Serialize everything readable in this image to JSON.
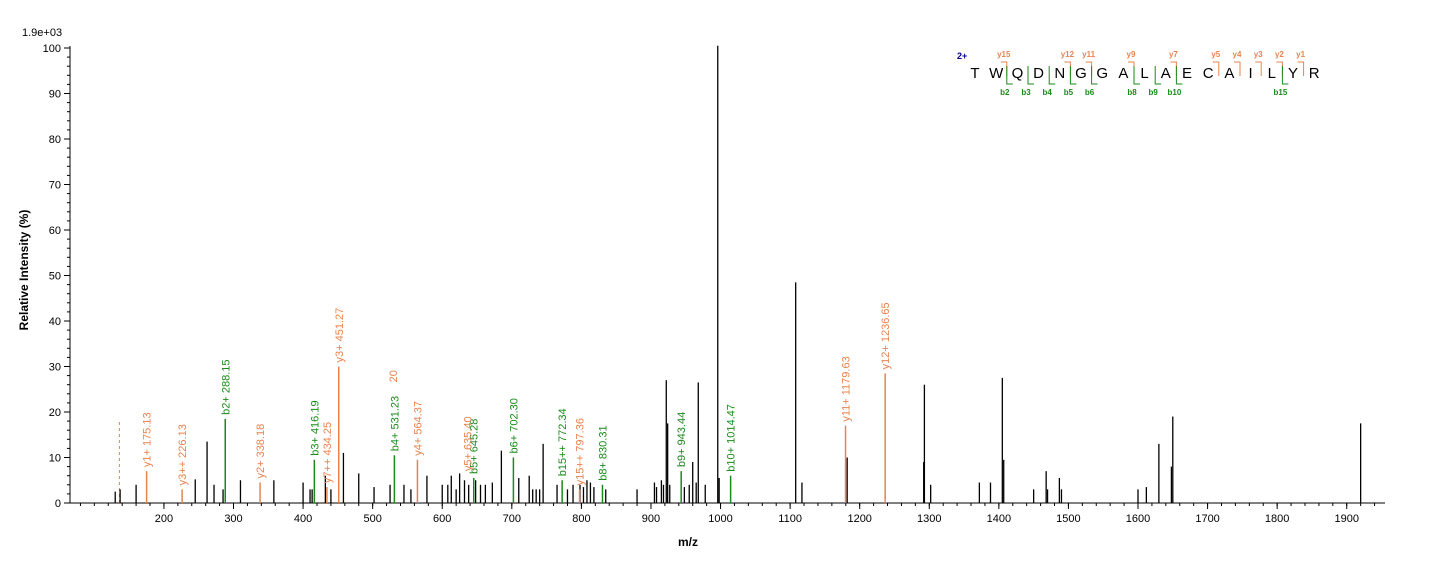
{
  "chart_data": {
    "type": "bar",
    "scale_label": "1.9e+03",
    "xlabel": "m/z",
    "ylabel": "Relative   Intensity (%)",
    "xlim": [
      65,
      1955
    ],
    "ylim": [
      0,
      100
    ],
    "xticks_major": [
      200,
      300,
      400,
      500,
      600,
      700,
      800,
      900,
      1000,
      1100,
      1200,
      1300,
      1400,
      1500,
      1600,
      1700,
      1800,
      1900
    ],
    "yticks": [
      0,
      10,
      20,
      30,
      40,
      50,
      60,
      70,
      80,
      90,
      100
    ],
    "grid": false,
    "colors": {
      "unassigned": "#000000",
      "y_ion": "#e8834e",
      "b_ion": "#1a8a1a",
      "charge": "#00008b"
    },
    "peaks": [
      {
        "mz": 130,
        "i": 2.5
      },
      {
        "mz": 137,
        "i": 3
      },
      {
        "mz": 160,
        "i": 4
      },
      {
        "mz": 245,
        "i": 5.2
      },
      {
        "mz": 262,
        "i": 13.5
      },
      {
        "mz": 272,
        "i": 4
      },
      {
        "mz": 285,
        "i": 3
      },
      {
        "mz": 310,
        "i": 5
      },
      {
        "mz": 358,
        "i": 5
      },
      {
        "mz": 400,
        "i": 4.5
      },
      {
        "mz": 410,
        "i": 3
      },
      {
        "mz": 413,
        "i": 3
      },
      {
        "mz": 432,
        "i": 6
      },
      {
        "mz": 440,
        "i": 3
      },
      {
        "mz": 458,
        "i": 11
      },
      {
        "mz": 480,
        "i": 6.5
      },
      {
        "mz": 502,
        "i": 3.5
      },
      {
        "mz": 525,
        "i": 4
      },
      {
        "mz": 545,
        "i": 4
      },
      {
        "mz": 555,
        "i": 3
      },
      {
        "mz": 578,
        "i": 6
      },
      {
        "mz": 600,
        "i": 4
      },
      {
        "mz": 608,
        "i": 4
      },
      {
        "mz": 613,
        "i": 6
      },
      {
        "mz": 620,
        "i": 3
      },
      {
        "mz": 625,
        "i": 6.5
      },
      {
        "mz": 632,
        "i": 5
      },
      {
        "mz": 638,
        "i": 4
      },
      {
        "mz": 648,
        "i": 5
      },
      {
        "mz": 655,
        "i": 4
      },
      {
        "mz": 662,
        "i": 4
      },
      {
        "mz": 672,
        "i": 4.5
      },
      {
        "mz": 685,
        "i": 11.5
      },
      {
        "mz": 710,
        "i": 5.5
      },
      {
        "mz": 725,
        "i": 6
      },
      {
        "mz": 730,
        "i": 3
      },
      {
        "mz": 735,
        "i": 3
      },
      {
        "mz": 740,
        "i": 3
      },
      {
        "mz": 745,
        "i": 13
      },
      {
        "mz": 765,
        "i": 4
      },
      {
        "mz": 780,
        "i": 3
      },
      {
        "mz": 788,
        "i": 4
      },
      {
        "mz": 798,
        "i": 4
      },
      {
        "mz": 803,
        "i": 3.5
      },
      {
        "mz": 808,
        "i": 5
      },
      {
        "mz": 813,
        "i": 4.5
      },
      {
        "mz": 818,
        "i": 3.5
      },
      {
        "mz": 835,
        "i": 3
      },
      {
        "mz": 880,
        "i": 3
      },
      {
        "mz": 905,
        "i": 4.5
      },
      {
        "mz": 908,
        "i": 3.5
      },
      {
        "mz": 915,
        "i": 5
      },
      {
        "mz": 918,
        "i": 4
      },
      {
        "mz": 922,
        "i": 27
      },
      {
        "mz": 924,
        "i": 17.5
      },
      {
        "mz": 927,
        "i": 4
      },
      {
        "mz": 948,
        "i": 3.5
      },
      {
        "mz": 955,
        "i": 4
      },
      {
        "mz": 960,
        "i": 9
      },
      {
        "mz": 965,
        "i": 4.5
      },
      {
        "mz": 968,
        "i": 26.5
      },
      {
        "mz": 978,
        "i": 4
      },
      {
        "mz": 996,
        "i": 100.5
      },
      {
        "mz": 998,
        "i": 5.5
      },
      {
        "mz": 1108,
        "i": 48.5
      },
      {
        "mz": 1117,
        "i": 4.5
      },
      {
        "mz": 1182,
        "i": 10
      },
      {
        "mz": 1292,
        "i": 9
      },
      {
        "mz": 1293,
        "i": 26
      },
      {
        "mz": 1302,
        "i": 4
      },
      {
        "mz": 1372,
        "i": 4.5
      },
      {
        "mz": 1388,
        "i": 4.5
      },
      {
        "mz": 1405,
        "i": 27.5
      },
      {
        "mz": 1407,
        "i": 9.5
      },
      {
        "mz": 1450,
        "i": 3
      },
      {
        "mz": 1468,
        "i": 7
      },
      {
        "mz": 1470,
        "i": 3
      },
      {
        "mz": 1487,
        "i": 5.5
      },
      {
        "mz": 1490,
        "i": 3
      },
      {
        "mz": 1600,
        "i": 3
      },
      {
        "mz": 1612,
        "i": 3.5
      },
      {
        "mz": 1630,
        "i": 13
      },
      {
        "mz": 1648,
        "i": 8
      },
      {
        "mz": 1650,
        "i": 19
      },
      {
        "mz": 1920,
        "i": 17.5
      }
    ],
    "annotations": [
      {
        "label": "y1+ 175.13",
        "mz": 175.13,
        "i": 7,
        "ion": "y"
      },
      {
        "label": "y3++ 226.13",
        "mz": 226.13,
        "i": 3,
        "ion": "y"
      },
      {
        "label": "b2+ 288.15",
        "mz": 288.15,
        "i": 18.5,
        "ion": "b"
      },
      {
        "label": "y2+ 338.18",
        "mz": 338.18,
        "i": 4.5,
        "ion": "y"
      },
      {
        "label": "b3+ 416.19",
        "mz": 416.19,
        "i": 9.5,
        "ion": "b"
      },
      {
        "label": "y7++ 434.25",
        "mz": 434.25,
        "i": 3.5,
        "ion": "y"
      },
      {
        "label": "y3+ 451.27",
        "mz": 451.27,
        "i": 30,
        "ion": "y"
      },
      {
        "label": "b4+ 531.23",
        "mz": 531.23,
        "i": 10.5,
        "ion": "b"
      },
      {
        "label": "y4+ 564.37",
        "mz": 564.37,
        "i": 9.5,
        "ion": "y"
      },
      {
        "label": "b5+ 645.28",
        "mz": 645.28,
        "i": 5.5,
        "ion": "b"
      },
      {
        "label": "b6+ 702.30",
        "mz": 702.3,
        "i": 10,
        "ion": "b"
      },
      {
        "label": "b15++ 772.34",
        "mz": 772.34,
        "i": 5,
        "ion": "b"
      },
      {
        "label": "y15++ 797.36",
        "mz": 797.36,
        "i": 3,
        "ion": "y"
      },
      {
        "label": "b8+ 830.31",
        "mz": 830.31,
        "i": 4,
        "ion": "b"
      },
      {
        "label": "b9+ 943.44",
        "mz": 943.44,
        "i": 7,
        "ion": "b"
      },
      {
        "label": "b10+ 1014.47",
        "mz": 1014.47,
        "i": 6,
        "ion": "b"
      },
      {
        "label": "y11+ 1179.63",
        "mz": 1179.63,
        "i": 17,
        "ion": "y"
      },
      {
        "label": "y12+ 1236.65",
        "mz": 1236.65,
        "i": 28.5,
        "ion": "y"
      }
    ],
    "clipped_labels": [
      {
        "text": "20",
        "mz": 529,
        "i": 26.5,
        "ion": "y"
      },
      {
        "text": "y5+ 635.40",
        "mz": 636,
        "i": 7,
        "ion": "y"
      }
    ],
    "dashed_marker": {
      "mz": 136,
      "i": 18
    }
  },
  "sequence": {
    "charge": "2+",
    "residues": [
      "T",
      "W",
      "Q",
      "D",
      "N",
      "G",
      "G",
      "A",
      "L",
      "A",
      "E",
      "C",
      "A",
      "I",
      "L",
      "Y",
      "R"
    ],
    "y_ions": [
      {
        "label": "y15",
        "after": 1
      },
      {
        "label": "y12",
        "after": 4
      },
      {
        "label": "y11",
        "after": 5
      },
      {
        "label": "y9",
        "after": 7
      },
      {
        "label": "y7",
        "after": 9
      },
      {
        "label": "y5",
        "after": 11
      },
      {
        "label": "y4",
        "after": 12
      },
      {
        "label": "y3",
        "after": 13
      },
      {
        "label": "y2",
        "after": 14
      },
      {
        "label": "y1",
        "after": 15
      }
    ],
    "b_ions": [
      {
        "label": "b2",
        "after": 1
      },
      {
        "label": "b3",
        "after": 2
      },
      {
        "label": "b4",
        "after": 3
      },
      {
        "label": "b5",
        "after": 4
      },
      {
        "label": "b6",
        "after": 5
      },
      {
        "label": "b8",
        "after": 7
      },
      {
        "label": "b9",
        "after": 8
      },
      {
        "label": "b10",
        "after": 9
      },
      {
        "label": "b15",
        "after": 14
      }
    ]
  }
}
